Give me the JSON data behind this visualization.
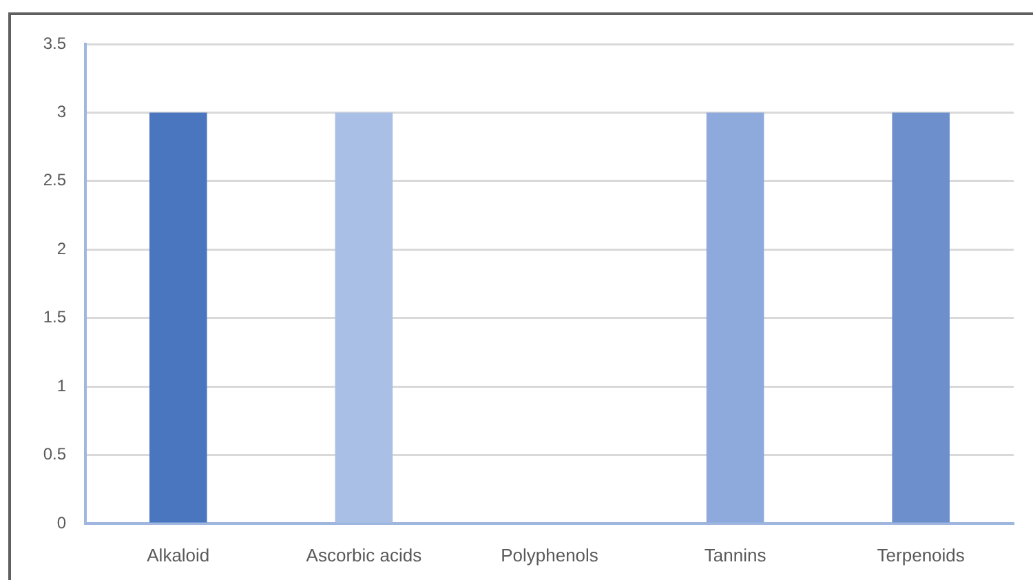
{
  "chart_data": {
    "type": "bar",
    "categories": [
      "Alkaloid",
      "Ascorbic acids",
      "Polyphenols",
      "Tannins",
      "Terpenoids"
    ],
    "values": [
      3,
      3,
      0,
      3,
      3
    ],
    "colors": [
      "#4a76c0",
      "#a9bfe6",
      "#4472c4",
      "#8ea9dc",
      "#6d90cd"
    ],
    "ylim": [
      0,
      3.5
    ],
    "yticks": [
      0,
      0.5,
      1,
      1.5,
      2,
      2.5,
      3,
      3.5
    ],
    "grid": "y"
  }
}
